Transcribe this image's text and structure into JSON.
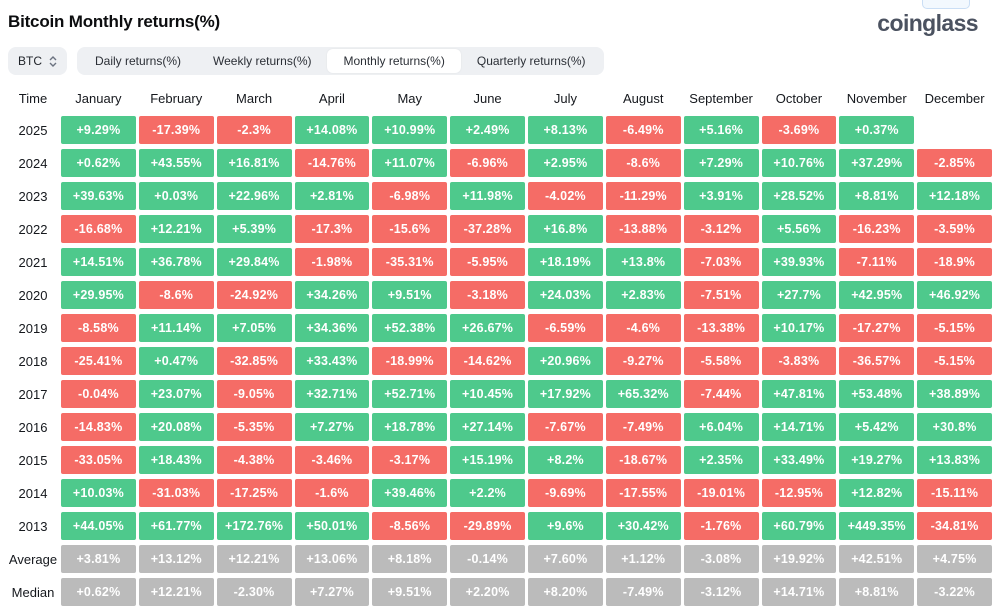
{
  "header": {
    "title": "Bitcoin Monthly returns(%)",
    "logo_text": "coinglass"
  },
  "controls": {
    "symbol_select": {
      "value": "BTC",
      "icon": "updown-chevron-icon"
    },
    "tabs": [
      {
        "label": "Daily returns(%)",
        "active": false
      },
      {
        "label": "Weekly returns(%)",
        "active": false
      },
      {
        "label": "Monthly returns(%)",
        "active": true
      },
      {
        "label": "Quarterly returns(%)",
        "active": false
      }
    ]
  },
  "colors": {
    "positive": "#4ec98c",
    "negative": "#f56c66",
    "neutral": "#bbbbbb"
  },
  "chart_data": {
    "type": "table",
    "title": "Bitcoin Monthly returns(%)",
    "columns": [
      "Time",
      "January",
      "February",
      "March",
      "April",
      "May",
      "June",
      "July",
      "August",
      "September",
      "October",
      "November",
      "December"
    ],
    "rows": [
      {
        "label": "2025",
        "style": "signed",
        "values": [
          "+9.29%",
          "-17.39%",
          "-2.3%",
          "+14.08%",
          "+10.99%",
          "+2.49%",
          "+8.13%",
          "-6.49%",
          "+5.16%",
          "-3.69%",
          "+0.37%",
          ""
        ]
      },
      {
        "label": "2024",
        "style": "signed",
        "values": [
          "+0.62%",
          "+43.55%",
          "+16.81%",
          "-14.76%",
          "+11.07%",
          "-6.96%",
          "+2.95%",
          "-8.6%",
          "+7.29%",
          "+10.76%",
          "+37.29%",
          "-2.85%"
        ]
      },
      {
        "label": "2023",
        "style": "signed",
        "values": [
          "+39.63%",
          "+0.03%",
          "+22.96%",
          "+2.81%",
          "-6.98%",
          "+11.98%",
          "-4.02%",
          "-11.29%",
          "+3.91%",
          "+28.52%",
          "+8.81%",
          "+12.18%"
        ]
      },
      {
        "label": "2022",
        "style": "signed",
        "values": [
          "-16.68%",
          "+12.21%",
          "+5.39%",
          "-17.3%",
          "-15.6%",
          "-37.28%",
          "+16.8%",
          "-13.88%",
          "-3.12%",
          "+5.56%",
          "-16.23%",
          "-3.59%"
        ]
      },
      {
        "label": "2021",
        "style": "signed",
        "values": [
          "+14.51%",
          "+36.78%",
          "+29.84%",
          "-1.98%",
          "-35.31%",
          "-5.95%",
          "+18.19%",
          "+13.8%",
          "-7.03%",
          "+39.93%",
          "-7.11%",
          "-18.9%"
        ]
      },
      {
        "label": "2020",
        "style": "signed",
        "values": [
          "+29.95%",
          "-8.6%",
          "-24.92%",
          "+34.26%",
          "+9.51%",
          "-3.18%",
          "+24.03%",
          "+2.83%",
          "-7.51%",
          "+27.7%",
          "+42.95%",
          "+46.92%"
        ]
      },
      {
        "label": "2019",
        "style": "signed",
        "values": [
          "-8.58%",
          "+11.14%",
          "+7.05%",
          "+34.36%",
          "+52.38%",
          "+26.67%",
          "-6.59%",
          "-4.6%",
          "-13.38%",
          "+10.17%",
          "-17.27%",
          "-5.15%"
        ]
      },
      {
        "label": "2018",
        "style": "signed",
        "values": [
          "-25.41%",
          "+0.47%",
          "-32.85%",
          "+33.43%",
          "-18.99%",
          "-14.62%",
          "+20.96%",
          "-9.27%",
          "-5.58%",
          "-3.83%",
          "-36.57%",
          "-5.15%"
        ]
      },
      {
        "label": "2017",
        "style": "signed",
        "values": [
          "-0.04%",
          "+23.07%",
          "-9.05%",
          "+32.71%",
          "+52.71%",
          "+10.45%",
          "+17.92%",
          "+65.32%",
          "-7.44%",
          "+47.81%",
          "+53.48%",
          "+38.89%"
        ]
      },
      {
        "label": "2016",
        "style": "signed",
        "values": [
          "-14.83%",
          "+20.08%",
          "-5.35%",
          "+7.27%",
          "+18.78%",
          "+27.14%",
          "-7.67%",
          "-7.49%",
          "+6.04%",
          "+14.71%",
          "+5.42%",
          "+30.8%"
        ]
      },
      {
        "label": "2015",
        "style": "signed",
        "values": [
          "-33.05%",
          "+18.43%",
          "-4.38%",
          "-3.46%",
          "-3.17%",
          "+15.19%",
          "+8.2%",
          "-18.67%",
          "+2.35%",
          "+33.49%",
          "+19.27%",
          "+13.83%"
        ]
      },
      {
        "label": "2014",
        "style": "signed",
        "values": [
          "+10.03%",
          "-31.03%",
          "-17.25%",
          "-1.6%",
          "+39.46%",
          "+2.2%",
          "-9.69%",
          "-17.55%",
          "-19.01%",
          "-12.95%",
          "+12.82%",
          "-15.11%"
        ]
      },
      {
        "label": "2013",
        "style": "signed",
        "values": [
          "+44.05%",
          "+61.77%",
          "+172.76%",
          "+50.01%",
          "-8.56%",
          "-29.89%",
          "+9.6%",
          "+30.42%",
          "-1.76%",
          "+60.79%",
          "+449.35%",
          "-34.81%"
        ]
      },
      {
        "label": "Average",
        "style": "neutral",
        "values": [
          "+3.81%",
          "+13.12%",
          "+12.21%",
          "+13.06%",
          "+8.18%",
          "-0.14%",
          "+7.60%",
          "+1.12%",
          "-3.08%",
          "+19.92%",
          "+42.51%",
          "+4.75%"
        ]
      },
      {
        "label": "Median",
        "style": "neutral",
        "values": [
          "+0.62%",
          "+12.21%",
          "-2.30%",
          "+7.27%",
          "+9.51%",
          "+2.20%",
          "+8.20%",
          "-7.49%",
          "-3.12%",
          "+14.71%",
          "+8.81%",
          "-3.22%"
        ]
      }
    ]
  }
}
